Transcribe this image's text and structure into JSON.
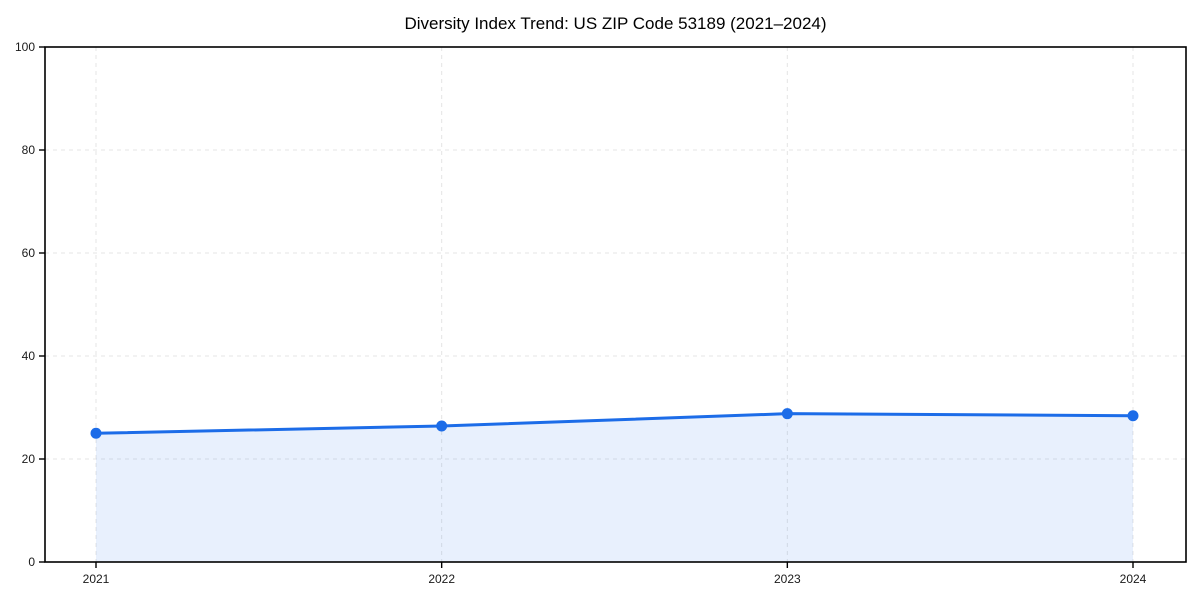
{
  "chart_data": {
    "type": "line",
    "title": "Diversity Index Trend: US ZIP Code 53189 (2021–2024)",
    "x": [
      "2021",
      "2022",
      "2023",
      "2024"
    ],
    "values": [
      25.0,
      26.4,
      28.8,
      28.4
    ],
    "xlabel": "",
    "ylabel": "",
    "ylim": [
      0,
      100
    ],
    "yticks": [
      0,
      20,
      40,
      60,
      80,
      100
    ],
    "grid": "dashed",
    "legend_position": "none",
    "area_fill": true,
    "marker": "circle",
    "colors": {
      "line": "#1c6ce8",
      "marker": "#1c6ce8",
      "area": "#1c6ce8",
      "area_opacity": 0.1,
      "grid": "#e5e5e5",
      "axis": "#000000",
      "tick_text": "#1a1a1a",
      "background": "#ffffff"
    }
  }
}
